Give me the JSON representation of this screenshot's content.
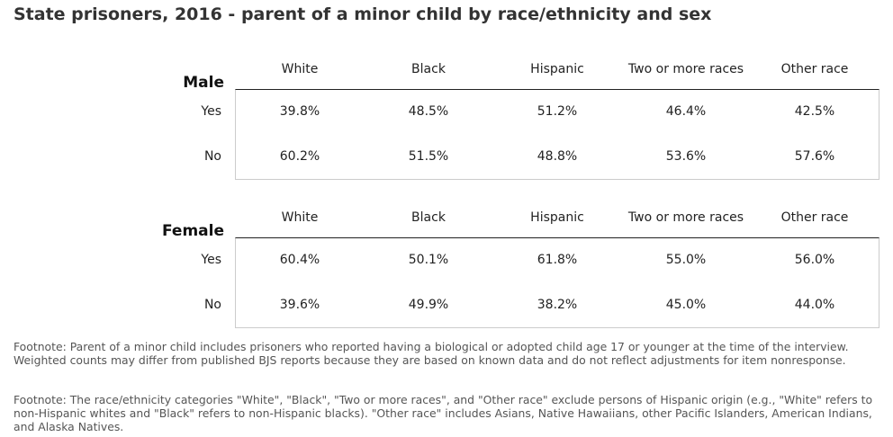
{
  "title": "State prisoners, 2016 - parent of a minor child by race/ethnicity and sex",
  "chart_data": {
    "type": "table",
    "title": "State prisoners, 2016 - parent of a minor child by race/ethnicity and sex",
    "columns": [
      "White",
      "Black",
      "Hispanic",
      "Two or more races",
      "Other race"
    ],
    "panels": [
      {
        "label": "Male",
        "rows": [
          {
            "label": "Yes",
            "values": [
              "39.8%",
              "48.5%",
              "51.2%",
              "46.4%",
              "42.5%"
            ]
          },
          {
            "label": "No",
            "values": [
              "60.2%",
              "51.5%",
              "48.8%",
              "53.6%",
              "57.6%"
            ]
          }
        ]
      },
      {
        "label": "Female",
        "rows": [
          {
            "label": "Yes",
            "values": [
              "60.4%",
              "50.1%",
              "61.8%",
              "55.0%",
              "56.0%"
            ]
          },
          {
            "label": "No",
            "values": [
              "39.6%",
              "49.9%",
              "38.2%",
              "45.0%",
              "44.0%"
            ]
          }
        ]
      }
    ]
  },
  "footnotes": [
    "Footnote: Parent of a minor child includes prisoners who reported having a biological or adopted child age 17 or younger at the time of the interview. Weighted counts may differ from published BJS reports because they are based on known data and do not reflect adjustments for item nonresponse.",
    "Footnote: The race/ethnicity categories \"White\", \"Black\", \"Two or more races\", and \"Other race\" exclude persons of Hispanic origin (e.g., \"White\" refers to non-Hispanic whites and \"Black\" refers to non-Hispanic blacks). \"Other race\" includes Asians, Native Hawaiians, other Pacific Islanders, American Indians, and Alaska Natives."
  ]
}
